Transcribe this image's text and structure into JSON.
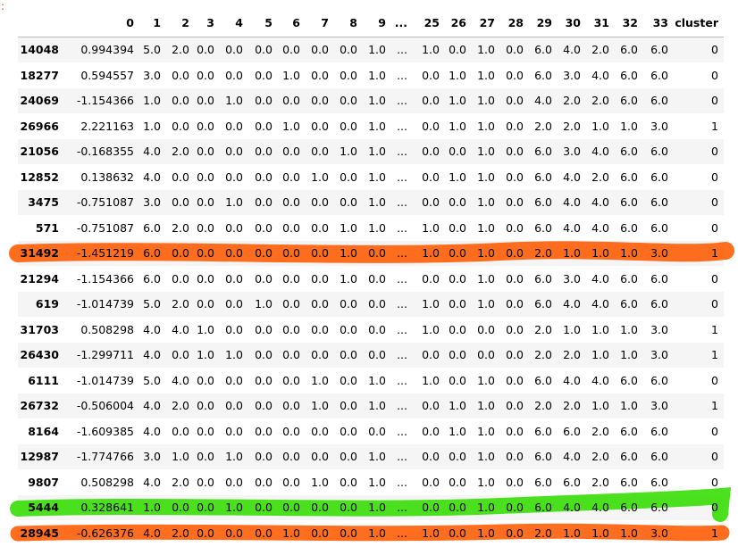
{
  "prompt": ":",
  "table": {
    "columns": [
      "0",
      "1",
      "2",
      "3",
      "4",
      "5",
      "6",
      "7",
      "8",
      "9",
      "...",
      "25",
      "26",
      "27",
      "28",
      "29",
      "30",
      "31",
      "32",
      "33",
      "cluster"
    ],
    "rows": [
      {
        "index": "14048",
        "cells": [
          "0.994394",
          "5.0",
          "2.0",
          "0.0",
          "0.0",
          "0.0",
          "0.0",
          "0.0",
          "0.0",
          "1.0",
          "...",
          "1.0",
          "0.0",
          "1.0",
          "0.0",
          "6.0",
          "4.0",
          "2.0",
          "6.0",
          "6.0",
          "0"
        ]
      },
      {
        "index": "18277",
        "cells": [
          "0.594557",
          "3.0",
          "0.0",
          "0.0",
          "0.0",
          "0.0",
          "1.0",
          "0.0",
          "0.0",
          "1.0",
          "...",
          "0.0",
          "1.0",
          "1.0",
          "0.0",
          "6.0",
          "3.0",
          "4.0",
          "6.0",
          "6.0",
          "0"
        ]
      },
      {
        "index": "24069",
        "cells": [
          "-1.154366",
          "1.0",
          "0.0",
          "0.0",
          "1.0",
          "0.0",
          "0.0",
          "0.0",
          "0.0",
          "1.0",
          "...",
          "0.0",
          "1.0",
          "1.0",
          "0.0",
          "4.0",
          "2.0",
          "2.0",
          "6.0",
          "6.0",
          "0"
        ]
      },
      {
        "index": "26966",
        "cells": [
          "2.221163",
          "1.0",
          "0.0",
          "0.0",
          "0.0",
          "0.0",
          "1.0",
          "0.0",
          "0.0",
          "1.0",
          "...",
          "0.0",
          "1.0",
          "1.0",
          "0.0",
          "2.0",
          "2.0",
          "1.0",
          "1.0",
          "3.0",
          "1"
        ]
      },
      {
        "index": "21056",
        "cells": [
          "-0.168355",
          "4.0",
          "2.0",
          "0.0",
          "0.0",
          "0.0",
          "0.0",
          "0.0",
          "1.0",
          "1.0",
          "...",
          "0.0",
          "0.0",
          "1.0",
          "0.0",
          "6.0",
          "3.0",
          "4.0",
          "6.0",
          "6.0",
          "0"
        ]
      },
      {
        "index": "12852",
        "cells": [
          "0.138632",
          "4.0",
          "0.0",
          "0.0",
          "0.0",
          "0.0",
          "0.0",
          "1.0",
          "0.0",
          "1.0",
          "...",
          "0.0",
          "1.0",
          "1.0",
          "0.0",
          "6.0",
          "4.0",
          "2.0",
          "6.0",
          "6.0",
          "0"
        ]
      },
      {
        "index": "3475",
        "cells": [
          "-0.751087",
          "3.0",
          "0.0",
          "0.0",
          "1.0",
          "0.0",
          "0.0",
          "0.0",
          "0.0",
          "1.0",
          "...",
          "0.0",
          "0.0",
          "1.0",
          "0.0",
          "6.0",
          "4.0",
          "4.0",
          "6.0",
          "6.0",
          "0"
        ]
      },
      {
        "index": "571",
        "cells": [
          "-0.751087",
          "6.0",
          "2.0",
          "0.0",
          "0.0",
          "0.0",
          "0.0",
          "0.0",
          "1.0",
          "1.0",
          "...",
          "1.0",
          "0.0",
          "1.0",
          "0.0",
          "6.0",
          "4.0",
          "4.0",
          "6.0",
          "6.0",
          "0"
        ]
      },
      {
        "index": "31492",
        "cells": [
          "-1.451219",
          "6.0",
          "0.0",
          "0.0",
          "0.0",
          "0.0",
          "0.0",
          "0.0",
          "1.0",
          "0.0",
          "...",
          "1.0",
          "0.0",
          "1.0",
          "0.0",
          "2.0",
          "1.0",
          "1.0",
          "1.0",
          "3.0",
          "1"
        ]
      },
      {
        "index": "21294",
        "cells": [
          "-1.154366",
          "6.0",
          "0.0",
          "0.0",
          "0.0",
          "0.0",
          "0.0",
          "0.0",
          "1.0",
          "0.0",
          "...",
          "0.0",
          "0.0",
          "1.0",
          "0.0",
          "6.0",
          "3.0",
          "4.0",
          "6.0",
          "6.0",
          "0"
        ]
      },
      {
        "index": "619",
        "cells": [
          "-1.014739",
          "5.0",
          "2.0",
          "0.0",
          "0.0",
          "1.0",
          "0.0",
          "0.0",
          "0.0",
          "0.0",
          "...",
          "1.0",
          "0.0",
          "1.0",
          "0.0",
          "6.0",
          "4.0",
          "4.0",
          "6.0",
          "6.0",
          "0"
        ]
      },
      {
        "index": "31703",
        "cells": [
          "0.508298",
          "4.0",
          "4.0",
          "1.0",
          "0.0",
          "0.0",
          "0.0",
          "0.0",
          "0.0",
          "0.0",
          "...",
          "1.0",
          "0.0",
          "0.0",
          "0.0",
          "2.0",
          "1.0",
          "1.0",
          "1.0",
          "3.0",
          "1"
        ]
      },
      {
        "index": "26430",
        "cells": [
          "-1.299711",
          "4.0",
          "0.0",
          "1.0",
          "1.0",
          "0.0",
          "0.0",
          "0.0",
          "0.0",
          "0.0",
          "...",
          "0.0",
          "0.0",
          "0.0",
          "0.0",
          "2.0",
          "2.0",
          "1.0",
          "1.0",
          "3.0",
          "1"
        ]
      },
      {
        "index": "6111",
        "cells": [
          "-1.014739",
          "5.0",
          "4.0",
          "0.0",
          "0.0",
          "0.0",
          "0.0",
          "1.0",
          "0.0",
          "1.0",
          "...",
          "1.0",
          "0.0",
          "1.0",
          "0.0",
          "6.0",
          "4.0",
          "4.0",
          "6.0",
          "6.0",
          "0"
        ]
      },
      {
        "index": "26732",
        "cells": [
          "-0.506004",
          "4.0",
          "2.0",
          "0.0",
          "0.0",
          "0.0",
          "0.0",
          "1.0",
          "0.0",
          "1.0",
          "...",
          "0.0",
          "1.0",
          "1.0",
          "0.0",
          "2.0",
          "2.0",
          "1.0",
          "1.0",
          "3.0",
          "1"
        ]
      },
      {
        "index": "8164",
        "cells": [
          "-1.609385",
          "4.0",
          "0.0",
          "0.0",
          "0.0",
          "0.0",
          "0.0",
          "0.0",
          "0.0",
          "0.0",
          "...",
          "0.0",
          "1.0",
          "1.0",
          "0.0",
          "6.0",
          "6.0",
          "2.0",
          "6.0",
          "6.0",
          "0"
        ]
      },
      {
        "index": "12987",
        "cells": [
          "-1.774766",
          "3.0",
          "1.0",
          "0.0",
          "1.0",
          "0.0",
          "0.0",
          "0.0",
          "0.0",
          "1.0",
          "...",
          "0.0",
          "0.0",
          "1.0",
          "0.0",
          "6.0",
          "4.0",
          "2.0",
          "6.0",
          "6.0",
          "0"
        ]
      },
      {
        "index": "9807",
        "cells": [
          "0.508298",
          "4.0",
          "2.0",
          "0.0",
          "0.0",
          "0.0",
          "0.0",
          "1.0",
          "0.0",
          "1.0",
          "...",
          "0.0",
          "0.0",
          "1.0",
          "0.0",
          "6.0",
          "6.0",
          "2.0",
          "6.0",
          "6.0",
          "0"
        ]
      },
      {
        "index": "5444",
        "cells": [
          "0.328641",
          "1.0",
          "0.0",
          "0.0",
          "1.0",
          "0.0",
          "0.0",
          "0.0",
          "0.0",
          "1.0",
          "...",
          "0.0",
          "0.0",
          "1.0",
          "0.0",
          "6.0",
          "4.0",
          "4.0",
          "6.0",
          "6.0",
          "0"
        ]
      },
      {
        "index": "28945",
        "cells": [
          "-0.626376",
          "4.0",
          "2.0",
          "0.0",
          "0.0",
          "0.0",
          "1.0",
          "0.0",
          "0.0",
          "1.0",
          "...",
          "1.0",
          "0.0",
          "1.0",
          "0.0",
          "2.0",
          "1.0",
          "1.0",
          "1.0",
          "3.0",
          "1"
        ]
      }
    ]
  }
}
